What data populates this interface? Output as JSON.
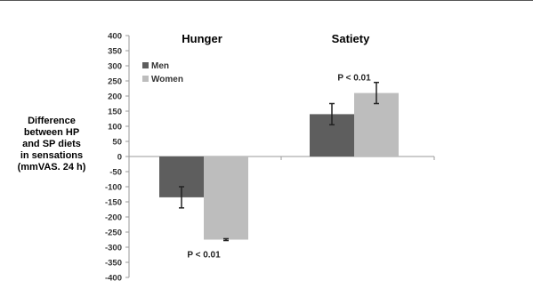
{
  "chart_data": {
    "type": "bar",
    "title": "",
    "categories": [
      "Hunger",
      "Satiety"
    ],
    "series": [
      {
        "name": "Men",
        "values": [
          -135,
          140
        ],
        "error": [
          35,
          35
        ]
      },
      {
        "name": "Women",
        "values": [
          -275,
          210
        ],
        "error": [
          3,
          35
        ]
      }
    ],
    "ylabel_lines": [
      "Difference",
      "between HP",
      "and SP diets",
      "in sensations",
      "(mmVAS. 24 h)"
    ],
    "xlabel": "",
    "ylim": [
      -400,
      400
    ],
    "yticks": [
      "400",
      "350",
      "300",
      "250",
      "200",
      "150",
      "100",
      "50",
      "0",
      "-50",
      "-100",
      "-150",
      "-200",
      "-250",
      "-300",
      "-350",
      "-400"
    ],
    "legend_position": "top-left",
    "grid": false,
    "colors": {
      "Men": "#5e5e5e",
      "Women": "#bdbdbd",
      "axis": "#9a9a9a"
    },
    "annotations": [
      {
        "text": "P < 0.01",
        "category": "Satiety",
        "series": "Women",
        "value": 260
      },
      {
        "text": "P < 0.01",
        "category": "Hunger",
        "series": "Women",
        "value": -325
      }
    ]
  }
}
